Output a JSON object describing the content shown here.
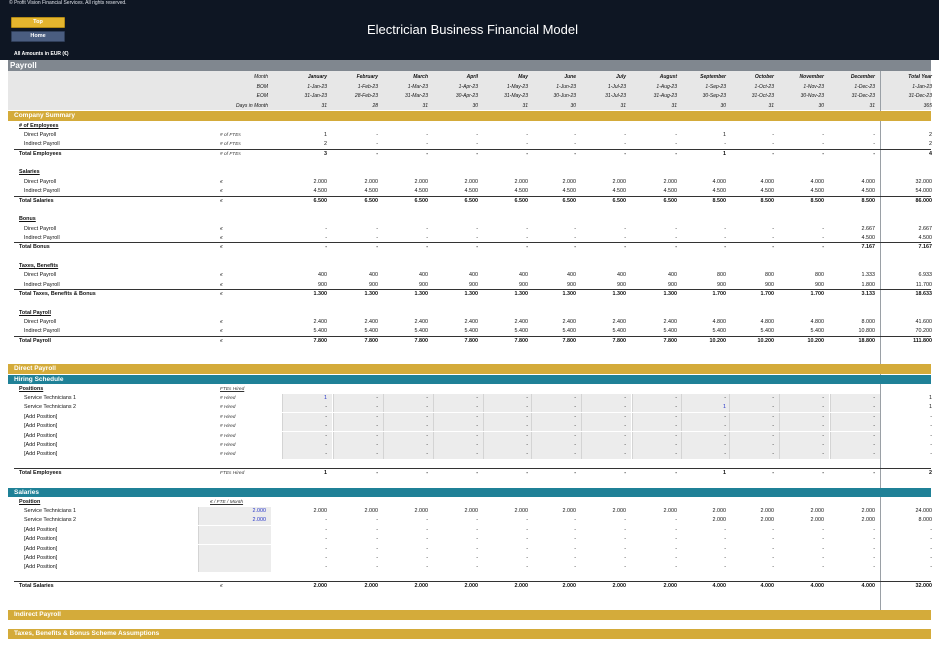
{
  "header": {
    "copyright": "© Profit Vision Financial Services. All rights reserved.",
    "title": "Electrician Business Financial Model",
    "amounts_note": "All Amounts in  EUR (€)",
    "btn_top": "Top",
    "btn_home": "Home"
  },
  "colors": {
    "gold": "#d4ab3a",
    "teal": "#1f8197",
    "navy": "#0e1623",
    "grey_bar": "#80878f"
  },
  "sheet": {
    "name": "Payroll"
  },
  "months": [
    "January",
    "February",
    "March",
    "April",
    "May",
    "June",
    "July",
    "August",
    "September",
    "October",
    "November",
    "December",
    "Total Year"
  ],
  "bom": [
    "1-Jan-23",
    "1-Feb-23",
    "1-Mar-23",
    "1-Apr-23",
    "1-May-23",
    "1-Jun-23",
    "1-Jul-23",
    "1-Aug-23",
    "1-Sep-23",
    "1-Oct-23",
    "1-Nov-23",
    "1-Dec-23",
    "1-Jan-23"
  ],
  "eom": [
    "31-Jan-23",
    "28-Feb-23",
    "31-Mar-23",
    "30-Apr-23",
    "31-May-23",
    "30-Jun-23",
    "31-Jul-23",
    "31-Aug-23",
    "30-Sep-23",
    "31-Oct-23",
    "30-Nov-23",
    "31-Dec-23",
    "31-Dec-23"
  ],
  "days": [
    "31",
    "28",
    "31",
    "30",
    "31",
    "30",
    "31",
    "31",
    "30",
    "31",
    "30",
    "31",
    "365"
  ],
  "header_labels": {
    "month": "Month",
    "bom": "BOM",
    "eom": "EOM",
    "days": "Days in Month"
  },
  "sections": {
    "company_summary": "Company Summary",
    "direct_payroll": "Direct Payroll",
    "hiring_schedule": "Hiring Schedule",
    "salaries_sub": "Salaries",
    "indirect_payroll": "Indirect Payroll",
    "taxes_assumptions": "Taxes, Benefits & Bonus Scheme Assumptions"
  },
  "summary": {
    "employees_head": "# of Employees",
    "salaries_head": "Salaries",
    "bonus_head": "Bonus",
    "taxes_head": "Taxes, Benefits",
    "payroll_head": "Total Payroll",
    "rows": {
      "emp_direct": {
        "label": "Direct Payroll",
        "unit": "# of FTEs",
        "vals": [
          "1",
          "-",
          "-",
          "-",
          "-",
          "-",
          "-",
          "-",
          "1",
          "-",
          "-",
          "-",
          "2"
        ]
      },
      "emp_indirect": {
        "label": "Indirect Payroll",
        "unit": "# of FTEs",
        "vals": [
          "2",
          "-",
          "-",
          "-",
          "-",
          "-",
          "-",
          "-",
          "-",
          "-",
          "-",
          "-",
          "2"
        ]
      },
      "emp_total": {
        "label": "Total Employees",
        "unit": "# of FTEs",
        "vals": [
          "3",
          "-",
          "-",
          "-",
          "-",
          "-",
          "-",
          "-",
          "1",
          "-",
          "-",
          "-",
          "4"
        ]
      },
      "sal_direct": {
        "label": "Direct Payroll",
        "unit": "€",
        "vals": [
          "2.000",
          "2.000",
          "2.000",
          "2.000",
          "2.000",
          "2.000",
          "2.000",
          "2.000",
          "4.000",
          "4.000",
          "4.000",
          "4.000",
          "32.000"
        ]
      },
      "sal_indirect": {
        "label": "Indirect Payroll",
        "unit": "€",
        "vals": [
          "4.500",
          "4.500",
          "4.500",
          "4.500",
          "4.500",
          "4.500",
          "4.500",
          "4.500",
          "4.500",
          "4.500",
          "4.500",
          "4.500",
          "54.000"
        ]
      },
      "sal_total": {
        "label": "Total Salaries",
        "unit": "€",
        "vals": [
          "6.500",
          "6.500",
          "6.500",
          "6.500",
          "6.500",
          "6.500",
          "6.500",
          "6.500",
          "8.500",
          "8.500",
          "8.500",
          "8.500",
          "86.000"
        ]
      },
      "bon_direct": {
        "label": "Direct Payroll",
        "unit": "€",
        "vals": [
          "-",
          "-",
          "-",
          "-",
          "-",
          "-",
          "-",
          "-",
          "-",
          "-",
          "-",
          "2.667",
          "2.667"
        ]
      },
      "bon_indirect": {
        "label": "Indirect Payroll",
        "unit": "€",
        "vals": [
          "-",
          "-",
          "-",
          "-",
          "-",
          "-",
          "-",
          "-",
          "-",
          "-",
          "-",
          "4.500",
          "4.500"
        ]
      },
      "bon_total": {
        "label": "Total Bonus",
        "unit": "€",
        "vals": [
          "-",
          "-",
          "-",
          "-",
          "-",
          "-",
          "-",
          "-",
          "-",
          "-",
          "-",
          "7.167",
          "7.167"
        ]
      },
      "tax_direct": {
        "label": "Direct Payroll",
        "unit": "€",
        "vals": [
          "400",
          "400",
          "400",
          "400",
          "400",
          "400",
          "400",
          "400",
          "800",
          "800",
          "800",
          "1.333",
          "6.933"
        ]
      },
      "tax_indirect": {
        "label": "Indirect Payroll",
        "unit": "€",
        "vals": [
          "900",
          "900",
          "900",
          "900",
          "900",
          "900",
          "900",
          "900",
          "900",
          "900",
          "900",
          "1.800",
          "11.700"
        ]
      },
      "tax_total": {
        "label": "Total Taxes, Benefits & Bonus",
        "unit": "€",
        "vals": [
          "1.300",
          "1.300",
          "1.300",
          "1.300",
          "1.300",
          "1.300",
          "1.300",
          "1.300",
          "1.700",
          "1.700",
          "1.700",
          "3.133",
          "18.633"
        ]
      },
      "pay_direct": {
        "label": "Direct Payroll",
        "unit": "€",
        "vals": [
          "2.400",
          "2.400",
          "2.400",
          "2.400",
          "2.400",
          "2.400",
          "2.400",
          "2.400",
          "4.800",
          "4.800",
          "4.800",
          "8.000",
          "41.600"
        ]
      },
      "pay_indirect": {
        "label": "Indirect Payroll",
        "unit": "€",
        "vals": [
          "5.400",
          "5.400",
          "5.400",
          "5.400",
          "5.400",
          "5.400",
          "5.400",
          "5.400",
          "5.400",
          "5.400",
          "5.400",
          "10.800",
          "70.200"
        ]
      },
      "pay_total": {
        "label": "Total Payroll",
        "unit": "€",
        "vals": [
          "7.800",
          "7.800",
          "7.800",
          "7.800",
          "7.800",
          "7.800",
          "7.800",
          "7.800",
          "10.200",
          "10.200",
          "10.200",
          "18.800",
          "111.800"
        ]
      }
    }
  },
  "hiring": {
    "positions_head": "Positions",
    "ftes_head": "FTEs Hired",
    "unit": "# Hired",
    "rows": [
      {
        "label": "Service Technicians 1",
        "vals": [
          "1",
          "-",
          "-",
          "-",
          "-",
          "-",
          "-",
          "-",
          "-",
          "-",
          "-",
          "-",
          "1"
        ]
      },
      {
        "label": "Service Technicians 2",
        "vals": [
          "-",
          "-",
          "-",
          "-",
          "-",
          "-",
          "-",
          "-",
          "1",
          "-",
          "-",
          "-",
          "1"
        ]
      },
      {
        "label": "[Add Position]",
        "vals": [
          "-",
          "-",
          "-",
          "-",
          "-",
          "-",
          "-",
          "-",
          "-",
          "-",
          "-",
          "-",
          "-"
        ]
      },
      {
        "label": "[Add Position]",
        "vals": [
          "-",
          "-",
          "-",
          "-",
          "-",
          "-",
          "-",
          "-",
          "-",
          "-",
          "-",
          "-",
          "-"
        ]
      },
      {
        "label": "[Add Position]",
        "vals": [
          "-",
          "-",
          "-",
          "-",
          "-",
          "-",
          "-",
          "-",
          "-",
          "-",
          "-",
          "-",
          "-"
        ]
      },
      {
        "label": "[Add Position]",
        "vals": [
          "-",
          "-",
          "-",
          "-",
          "-",
          "-",
          "-",
          "-",
          "-",
          "-",
          "-",
          "-",
          "-"
        ]
      },
      {
        "label": "[Add Position]",
        "vals": [
          "-",
          "-",
          "-",
          "-",
          "-",
          "-",
          "-",
          "-",
          "-",
          "-",
          "-",
          "-",
          "-"
        ]
      }
    ],
    "total": {
      "label": "Total Employees",
      "unit": "FTEs Hired",
      "vals": [
        "1",
        "-",
        "-",
        "-",
        "-",
        "-",
        "-",
        "-",
        "1",
        "-",
        "-",
        "-",
        "2"
      ]
    }
  },
  "salaries": {
    "position_head": "Position",
    "rate_head": "€ / FTE / Month",
    "rows": [
      {
        "label": "Service Technicians 1",
        "rate": "2.000",
        "vals": [
          "2.000",
          "2.000",
          "2.000",
          "2.000",
          "2.000",
          "2.000",
          "2.000",
          "2.000",
          "2.000",
          "2.000",
          "2.000",
          "2.000",
          "24.000"
        ]
      },
      {
        "label": "Service Technicians 2",
        "rate": "2.000",
        "vals": [
          "-",
          "-",
          "-",
          "-",
          "-",
          "-",
          "-",
          "-",
          "2.000",
          "2.000",
          "2.000",
          "2.000",
          "8.000"
        ]
      },
      {
        "label": "[Add Position]",
        "rate": "",
        "vals": [
          "-",
          "-",
          "-",
          "-",
          "-",
          "-",
          "-",
          "-",
          "-",
          "-",
          "-",
          "-",
          "-"
        ]
      },
      {
        "label": "[Add Position]",
        "rate": "",
        "vals": [
          "-",
          "-",
          "-",
          "-",
          "-",
          "-",
          "-",
          "-",
          "-",
          "-",
          "-",
          "-",
          "-"
        ]
      },
      {
        "label": "[Add Position]",
        "rate": "",
        "vals": [
          "-",
          "-",
          "-",
          "-",
          "-",
          "-",
          "-",
          "-",
          "-",
          "-",
          "-",
          "-",
          "-"
        ]
      },
      {
        "label": "[Add Position]",
        "rate": "",
        "vals": [
          "-",
          "-",
          "-",
          "-",
          "-",
          "-",
          "-",
          "-",
          "-",
          "-",
          "-",
          "-",
          "-"
        ]
      },
      {
        "label": "[Add Position]",
        "rate": "",
        "vals": [
          "-",
          "-",
          "-",
          "-",
          "-",
          "-",
          "-",
          "-",
          "-",
          "-",
          "-",
          "-",
          "-"
        ]
      }
    ],
    "total": {
      "label": "Total Salaries",
      "unit": "€",
      "vals": [
        "2.000",
        "2.000",
        "2.000",
        "2.000",
        "2.000",
        "2.000",
        "2.000",
        "2.000",
        "4.000",
        "4.000",
        "4.000",
        "4.000",
        "32.000"
      ]
    }
  }
}
